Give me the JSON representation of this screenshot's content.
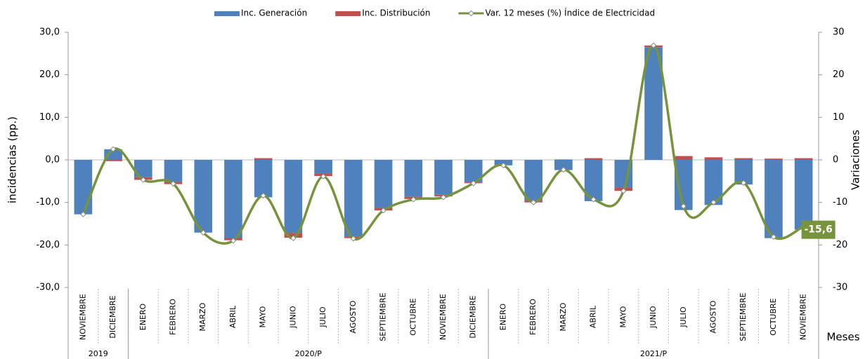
{
  "chart_data": {
    "type": "bar",
    "categories": [
      "NOVIEMBRE",
      "DICIEMBRE",
      "ENERO",
      "FEBRERO",
      "MARZO",
      "ABRIL",
      "MAYO",
      "JUNIO",
      "JULIO",
      "AGOSTO",
      "SEPTIEMBRE",
      "OCTUBRE",
      "NOVIEMBRE",
      "DICIEMBRE",
      "ENERO",
      "FEBRERO",
      "MARZO",
      "ABRIL",
      "MAYO",
      "JUNIO",
      "JULIO",
      "AGOSTO",
      "SEPTIEMBRE",
      "OCTUBRE",
      "NOVIEMBRE"
    ],
    "groups": [
      {
        "label": "2019",
        "span": 2
      },
      {
        "label": "2020/P",
        "span": 12
      },
      {
        "label": "2021/P",
        "span": 11
      }
    ],
    "series": [
      {
        "name": "Inc. Generación",
        "color": "#4f81bd",
        "stacked": true,
        "values": [
          -12.8,
          2.5,
          -4.1,
          -5.2,
          -17.1,
          -18.3,
          -8.8,
          -17.2,
          -3.2,
          -18.0,
          -11.3,
          -8.7,
          -8.2,
          -5.3,
          -1.2,
          -9.5,
          -2.4,
          -9.7,
          -6.5,
          26.5,
          -11.8,
          -10.6,
          -5.8,
          -18.4,
          -16.4
        ]
      },
      {
        "name": "Inc. Distribución",
        "color": "#c0504d",
        "stacked": true,
        "values": [
          0,
          -0.3,
          -0.6,
          -0.5,
          0,
          -0.6,
          0.4,
          -1.1,
          -0.6,
          -0.4,
          -0.6,
          -0.5,
          -0.4,
          -0.2,
          -0.1,
          -0.5,
          0.1,
          0.4,
          -0.8,
          0.4,
          0.9,
          0.6,
          0.4,
          0.3,
          0.4
        ]
      },
      {
        "name": "Var. 12 meses (%) Índice de Electricidad",
        "color": "#77933c",
        "type": "line",
        "axis": "y2",
        "values": [
          -12.8,
          2.5,
          -4.7,
          -5.6,
          -17.1,
          -19.0,
          -8.4,
          -18.4,
          -3.9,
          -18.5,
          -11.9,
          -9.3,
          -8.8,
          -5.5,
          -1.3,
          -10.0,
          -2.3,
          -9.3,
          -7.3,
          26.9,
          -10.9,
          -10.0,
          -5.4,
          -18.1,
          -15.6
        ],
        "value_labels": [
          null,
          null,
          null,
          null,
          null,
          null,
          null,
          null,
          null,
          null,
          null,
          null,
          null,
          null,
          null,
          null,
          null,
          null,
          null,
          null,
          null,
          null,
          null,
          null,
          "-15,6"
        ]
      }
    ],
    "ylabel": "incidencias (pp.)",
    "y2label": "Variaciones",
    "xlabel": "Meses",
    "ylim": [
      -30,
      30
    ],
    "yticks": [
      {
        "value": -30,
        "label": "-30,0"
      },
      {
        "value": -20,
        "label": "-20,0"
      },
      {
        "value": -10,
        "label": "-10,0"
      },
      {
        "value": 0,
        "label": "0,0"
      },
      {
        "value": 10,
        "label": "10,0"
      },
      {
        "value": 20,
        "label": "20,0"
      },
      {
        "value": 30,
        "label": "30,0"
      }
    ],
    "y2lim": [
      -30,
      30
    ],
    "y2ticks": [
      -30,
      -20,
      -10,
      0,
      10,
      20,
      30
    ],
    "grid": false
  }
}
